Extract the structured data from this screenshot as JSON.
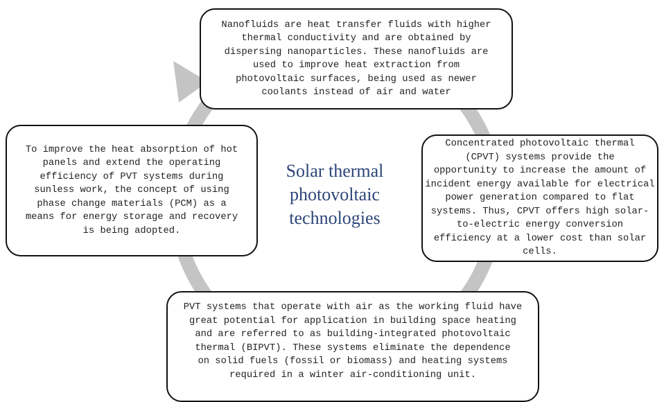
{
  "title": [
    "Solar thermal",
    "photovoltaic",
    "technologies"
  ],
  "nodes": [
    {
      "lines": [
        "Nanofluids are heat transfer fluids with higher",
        "thermal conductivity and are obtained by",
        "dispersing nanoparticles. These nanofluids are",
        "used to improve heat extraction from",
        "photovoltaic surfaces, being used as newer",
        "coolants instead of air and water"
      ]
    },
    {
      "lines": [
        "Concentrated photovoltaic thermal",
        "(CPVT) systems provide the",
        "opportunity to increase the amount of",
        "incident energy available for electrical",
        "power generation compared to flat",
        "systems. Thus, CPVT offers high solar-",
        "to-electric energy conversion",
        "efficiency at a lower cost than solar",
        "cells."
      ]
    },
    {
      "lines": [
        "PVT systems that operate with air as the working fluid have",
        "great potential for application in building space heating",
        "and are referred to as building-integrated photovoltaic",
        "thermal (BIPVT). These systems eliminate the dependence",
        "on solid fuels (fossil or biomass) and heating systems",
        "required in a winter air-conditioning unit."
      ]
    },
    {
      "lines": [
        "To improve the heat absorption of hot",
        "panels and extend the operating",
        "efficiency of PVT systems during",
        "sunless work, the concept of using",
        "phase change materials (PCM) as a",
        "means for energy storage and recovery",
        "is being adopted."
      ]
    }
  ]
}
